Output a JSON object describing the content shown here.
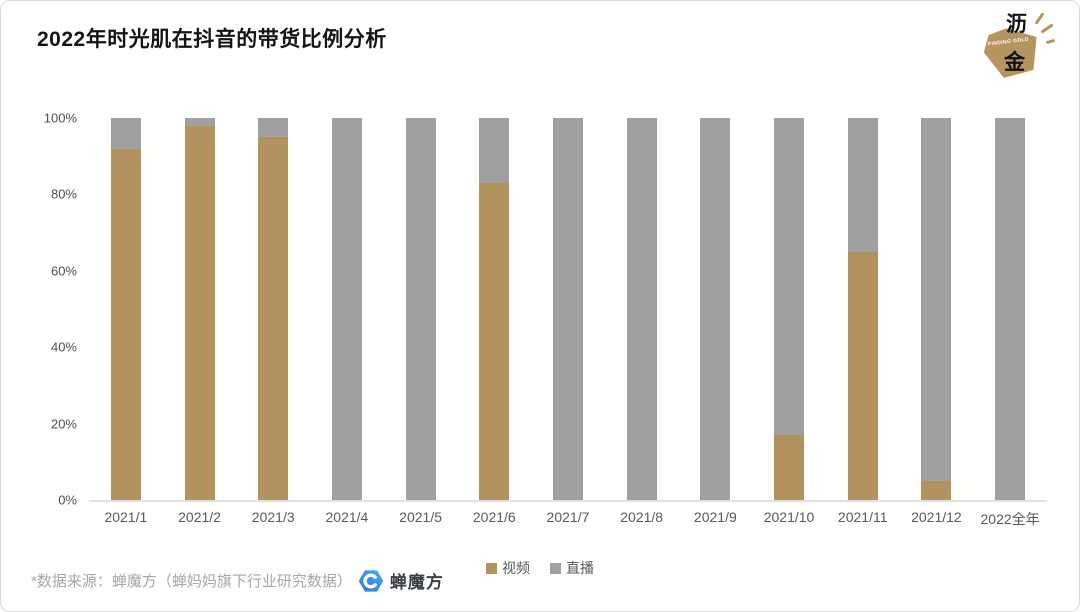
{
  "header": {
    "logo": {
      "char_top": "沥",
      "char_bottom": "金",
      "tagline": "FINDING GOLD"
    }
  },
  "chart_data": {
    "type": "bar",
    "stacked": true,
    "title": "2022年时光肌在抖音的带货比例分析",
    "categories": [
      "2021/1",
      "2021/2",
      "2021/3",
      "2021/4",
      "2021/5",
      "2021/6",
      "2021/7",
      "2021/8",
      "2021/9",
      "2021/10",
      "2021/11",
      "2021/12",
      "2022全年"
    ],
    "series": [
      {
        "name": "视频",
        "color": "#b2935f",
        "values": [
          92,
          98,
          95,
          0,
          0,
          83,
          0,
          0,
          0,
          17,
          65,
          5,
          0
        ]
      },
      {
        "name": "直播",
        "color": "#a0a0a0",
        "values": [
          8,
          2,
          5,
          100,
          100,
          17,
          100,
          100,
          100,
          83,
          35,
          95,
          100
        ]
      }
    ],
    "unit": "percent",
    "ylim": [
      0,
      100
    ],
    "yticks": [
      "100%",
      "80%",
      "60%",
      "40%",
      "20%",
      "0%"
    ],
    "grid": false,
    "legend_position": "bottom-center"
  },
  "footer": {
    "source_note": "*数据来源：蝉魔方（蝉妈妈旗下行业研究数据）",
    "logo_text": "蝉魔方"
  },
  "colors": {
    "video": "#b2935f",
    "live": "#a0a0a0",
    "axis_line": "#e0e0e0",
    "tick_text": "#595959",
    "lijin_gold": "#b5945e",
    "chan_blue_dark": "#2b7de9",
    "chan_blue_light": "#3fa9f5"
  }
}
